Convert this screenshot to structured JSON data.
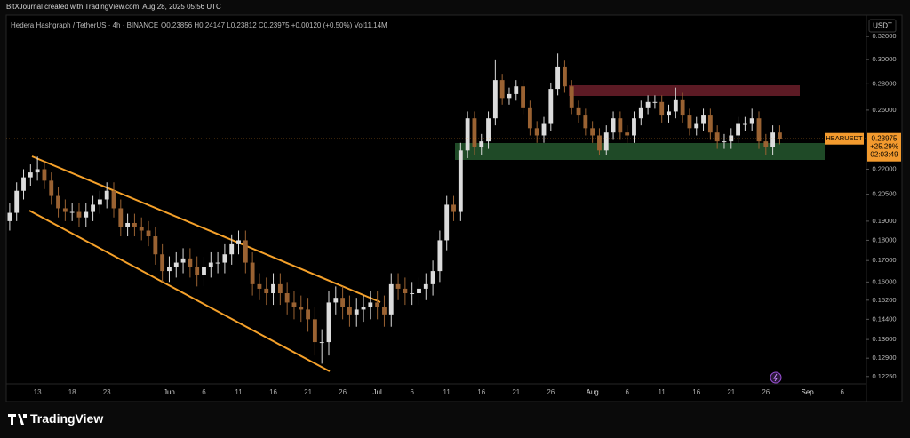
{
  "credit": "BitXJournal created with TradingView.com, Aug 28, 2025 05:56 UTC",
  "brand": "TradingView",
  "chart_data": {
    "type": "candlestick",
    "symbol_title": "Hedera Hashgraph / TetherUS · 4h · BINANCE",
    "ohlc_text": "O0.23856 H0.24147 L0.23812 C0.23975 +0.00120 (+0.50%) Vol11.14M",
    "currency": "USDT",
    "last_label": {
      "symbol": "HBARUSDT",
      "price": "0.23975",
      "change": "+25.29%",
      "countdown": "02:03:49"
    },
    "log_scale": true,
    "up_color": "#dcdcdc",
    "down_color": "#9a6232",
    "ylim": [
      0.12,
      0.34
    ],
    "yticks": [
      {
        "value": 0.32,
        "label": "0.32000"
      },
      {
        "value": 0.3,
        "label": "0.30000"
      },
      {
        "value": 0.28,
        "label": "0.28000"
      },
      {
        "value": 0.26,
        "label": "0.26000"
      },
      {
        "value": 0.22,
        "label": "0.22000"
      },
      {
        "value": 0.205,
        "label": "0.20500"
      },
      {
        "value": 0.19,
        "label": "0.19000"
      },
      {
        "value": 0.18,
        "label": "0.18000"
      },
      {
        "value": 0.17,
        "label": "0.17000"
      },
      {
        "value": 0.16,
        "label": "0.16000"
      },
      {
        "value": 0.152,
        "label": "0.15200"
      },
      {
        "value": 0.144,
        "label": "0.14400"
      },
      {
        "value": 0.136,
        "label": "0.13600"
      },
      {
        "value": 0.129,
        "label": "0.12900"
      },
      {
        "value": 0.1225,
        "label": "0.12250"
      }
    ],
    "categories": [
      null,
      null,
      null,
      null,
      "13",
      null,
      null,
      null,
      null,
      "18",
      null,
      null,
      null,
      null,
      "23",
      null,
      null,
      null,
      null,
      null,
      null,
      null,
      null,
      "Jun",
      null,
      null,
      null,
      null,
      "6",
      null,
      null,
      null,
      null,
      "11",
      null,
      null,
      null,
      null,
      "16",
      null,
      null,
      null,
      null,
      "21",
      null,
      null,
      null,
      null,
      "26",
      null,
      null,
      null,
      null,
      "Jul",
      null,
      null,
      null,
      null,
      "6",
      null,
      null,
      null,
      null,
      "11",
      null,
      null,
      null,
      null,
      "16",
      null,
      null,
      null,
      null,
      "21",
      null,
      null,
      null,
      null,
      "26",
      null,
      null,
      null,
      null,
      null,
      "Aug",
      null,
      null,
      null,
      null,
      "6",
      null,
      null,
      null,
      null,
      "11",
      null,
      null,
      null,
      null,
      "16",
      null,
      null,
      null,
      null,
      "21",
      null,
      null,
      null,
      null,
      "26",
      null,
      null,
      null,
      null,
      null,
      "Sep",
      null,
      null,
      null,
      null,
      "6",
      null,
      null,
      null
    ],
    "open": [
      0.19,
      0.1945,
      0.207,
      0.215,
      0.218,
      0.22,
      0.213,
      0.204,
      0.197,
      0.195,
      0.195,
      0.192,
      0.195,
      0.199,
      0.202,
      0.207,
      0.197,
      0.187,
      0.189,
      0.187,
      0.185,
      0.182,
      0.173,
      0.165,
      0.167,
      0.169,
      0.171,
      0.167,
      0.163,
      0.167,
      0.169,
      0.169,
      0.173,
      0.178,
      0.18,
      0.169,
      0.159,
      0.157,
      0.155,
      0.159,
      0.155,
      0.151,
      0.149,
      0.148,
      0.144,
      0.135,
      0.135,
      0.151,
      0.153,
      0.149,
      0.146,
      0.148,
      0.149,
      0.151,
      0.149,
      0.146,
      0.159,
      0.157,
      0.155,
      0.155,
      0.157,
      0.159,
      0.165,
      0.18,
      0.199,
      0.195,
      0.232,
      0.254,
      0.234,
      0.238,
      0.254,
      0.283,
      0.269,
      0.272,
      0.278,
      0.262,
      0.247,
      0.242,
      0.25,
      0.276,
      0.294,
      0.278,
      0.262,
      0.256,
      0.247,
      0.242,
      0.232,
      0.244,
      0.254,
      0.244,
      0.242,
      0.254,
      0.262,
      0.266,
      0.266,
      0.256,
      0.259,
      0.268,
      0.256,
      0.247,
      0.25,
      0.256,
      0.244,
      0.238,
      0.238,
      0.242,
      0.25,
      0.25,
      0.254,
      0.238,
      0.234,
      0.244,
      null,
      null,
      null,
      null,
      null,
      null,
      null,
      null,
      null,
      null,
      null,
      null
    ],
    "high": [
      0.2,
      0.212,
      0.22,
      0.223,
      0.228,
      0.225,
      0.218,
      0.209,
      0.202,
      0.2,
      0.2,
      0.2,
      0.204,
      0.207,
      0.212,
      0.212,
      0.202,
      0.194,
      0.194,
      0.192,
      0.19,
      0.187,
      0.178,
      0.172,
      0.174,
      0.176,
      0.176,
      0.172,
      0.172,
      0.174,
      0.174,
      0.178,
      0.183,
      0.185,
      0.185,
      0.174,
      0.164,
      0.162,
      0.164,
      0.164,
      0.16,
      0.156,
      0.154,
      0.153,
      0.149,
      0.14,
      0.156,
      0.158,
      0.158,
      0.154,
      0.153,
      0.154,
      0.156,
      0.156,
      0.154,
      0.164,
      0.164,
      0.162,
      0.16,
      0.162,
      0.164,
      0.17,
      0.185,
      0.204,
      0.204,
      0.237,
      0.259,
      0.259,
      0.243,
      0.259,
      0.3,
      0.288,
      0.277,
      0.283,
      0.283,
      0.267,
      0.252,
      0.255,
      0.281,
      0.305,
      0.299,
      0.283,
      0.267,
      0.261,
      0.252,
      0.247,
      0.249,
      0.259,
      0.259,
      0.249,
      0.259,
      0.267,
      0.271,
      0.271,
      0.271,
      0.264,
      0.277,
      0.273,
      0.261,
      0.255,
      0.261,
      0.261,
      0.249,
      0.243,
      0.247,
      0.255,
      0.255,
      0.261,
      0.259,
      0.243,
      0.249,
      0.249,
      null,
      null,
      null,
      null,
      null,
      null,
      null,
      null,
      null,
      null,
      null,
      null
    ],
    "low": [
      0.185,
      0.19,
      0.202,
      0.21,
      0.213,
      0.208,
      0.199,
      0.192,
      0.19,
      0.19,
      0.187,
      0.187,
      0.19,
      0.194,
      0.197,
      0.192,
      0.182,
      0.182,
      0.182,
      0.18,
      0.177,
      0.168,
      0.16,
      0.16,
      0.162,
      0.164,
      0.162,
      0.158,
      0.158,
      0.162,
      0.164,
      0.164,
      0.168,
      0.173,
      0.164,
      0.154,
      0.152,
      0.15,
      0.15,
      0.15,
      0.146,
      0.144,
      0.143,
      0.139,
      0.13,
      0.127,
      0.13,
      0.146,
      0.144,
      0.141,
      0.141,
      0.143,
      0.144,
      0.144,
      0.141,
      0.141,
      0.152,
      0.15,
      0.15,
      0.15,
      0.152,
      0.154,
      0.16,
      0.175,
      0.19,
      0.19,
      0.227,
      0.229,
      0.229,
      0.233,
      0.249,
      0.264,
      0.264,
      0.267,
      0.257,
      0.242,
      0.237,
      0.237,
      0.245,
      0.271,
      0.273,
      0.257,
      0.251,
      0.242,
      0.237,
      0.229,
      0.229,
      0.239,
      0.239,
      0.237,
      0.237,
      0.249,
      0.257,
      0.261,
      0.251,
      0.251,
      0.254,
      0.251,
      0.242,
      0.242,
      0.245,
      0.239,
      0.233,
      0.233,
      0.233,
      0.237,
      0.245,
      0.245,
      0.233,
      0.229,
      0.229,
      0.236,
      null,
      null,
      null,
      null,
      null,
      null,
      null,
      null,
      null,
      null,
      null,
      null
    ],
    "close": [
      0.1945,
      0.207,
      0.215,
      0.218,
      0.22,
      0.213,
      0.204,
      0.197,
      0.195,
      0.195,
      0.192,
      0.195,
      0.199,
      0.202,
      0.207,
      0.197,
      0.187,
      0.189,
      0.187,
      0.185,
      0.182,
      0.173,
      0.165,
      0.167,
      0.169,
      0.171,
      0.167,
      0.163,
      0.167,
      0.169,
      0.169,
      0.173,
      0.178,
      0.18,
      0.169,
      0.159,
      0.157,
      0.155,
      0.159,
      0.155,
      0.151,
      0.149,
      0.148,
      0.144,
      0.135,
      0.135,
      0.151,
      0.153,
      0.149,
      0.146,
      0.148,
      0.149,
      0.151,
      0.149,
      0.146,
      0.159,
      0.157,
      0.155,
      0.155,
      0.157,
      0.159,
      0.165,
      0.18,
      0.199,
      0.195,
      0.232,
      0.254,
      0.234,
      0.238,
      0.254,
      0.283,
      0.269,
      0.272,
      0.278,
      0.262,
      0.247,
      0.242,
      0.25,
      0.276,
      0.294,
      0.278,
      0.262,
      0.256,
      0.247,
      0.242,
      0.232,
      0.244,
      0.254,
      0.244,
      0.242,
      0.254,
      0.262,
      0.266,
      0.266,
      0.256,
      0.259,
      0.268,
      0.256,
      0.247,
      0.25,
      0.256,
      0.244,
      0.238,
      0.238,
      0.242,
      0.25,
      0.25,
      0.254,
      0.238,
      0.234,
      0.244,
      0.23975,
      null,
      null,
      null,
      null,
      null,
      null,
      null,
      null,
      null,
      null,
      null,
      null
    ]
  }
}
